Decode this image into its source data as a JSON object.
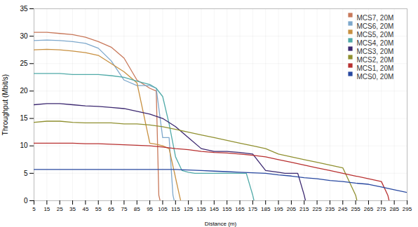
{
  "chart_data": {
    "type": "line",
    "xlabel": "Distance (m)",
    "ylabel": "Throughput (Mbit/s)",
    "xlim": [
      5,
      295
    ],
    "ylim": [
      0,
      35
    ],
    "xticks": [
      5,
      15,
      25,
      35,
      45,
      55,
      65,
      75,
      85,
      95,
      105,
      115,
      125,
      135,
      145,
      155,
      165,
      175,
      185,
      195,
      205,
      215,
      225,
      235,
      245,
      255,
      265,
      275,
      285,
      295
    ],
    "yticks": [
      0,
      5,
      10,
      15,
      20,
      25,
      30,
      35
    ],
    "grid": true,
    "legend": "upper right",
    "series": [
      {
        "name": "MCS7, 20M",
        "color": "#c8785a",
        "x": [
          5,
          15,
          25,
          35,
          45,
          55,
          65,
          75,
          85,
          95,
          100,
          102,
          103
        ],
        "values": [
          30.7,
          30.7,
          30.5,
          30.3,
          29.8,
          29.0,
          28.0,
          26.0,
          22.0,
          20.5,
          20.0,
          1.0,
          0
        ]
      },
      {
        "name": "MCS6, 20M",
        "color": "#7ea8cc",
        "x": [
          5,
          15,
          25,
          35,
          45,
          55,
          65,
          75,
          85,
          95,
          100,
          105,
          110,
          113,
          114
        ],
        "values": [
          29.2,
          29.3,
          29.2,
          29.0,
          28.7,
          27.8,
          25.5,
          22.0,
          21.0,
          21.0,
          20.5,
          11.5,
          11.5,
          1.0,
          0
        ]
      },
      {
        "name": "MCS5, 20M",
        "color": "#c89040",
        "x": [
          5,
          15,
          25,
          35,
          45,
          55,
          65,
          75,
          85,
          95,
          100,
          105,
          110,
          118,
          119
        ],
        "values": [
          27.5,
          27.6,
          27.5,
          27.3,
          27.0,
          26.5,
          25.0,
          23.5,
          21.5,
          10.5,
          10.3,
          10.0,
          9.5,
          1.0,
          0
        ]
      },
      {
        "name": "MCS4, 20M",
        "color": "#50aaa8",
        "x": [
          5,
          15,
          25,
          35,
          45,
          55,
          65,
          75,
          85,
          95,
          100,
          105,
          110,
          115,
          120,
          125,
          130,
          140,
          145,
          155,
          165,
          170,
          175,
          176
        ],
        "values": [
          23.2,
          23.2,
          23.2,
          23.0,
          23.0,
          23.0,
          22.8,
          22.5,
          21.8,
          21.2,
          20.5,
          19.0,
          14.0,
          8.0,
          5.5,
          5.2,
          5.0,
          5.0,
          5.0,
          5.0,
          5.0,
          5.0,
          1.0,
          0
        ]
      },
      {
        "name": "MCS3, 20M",
        "color": "#3c2870",
        "x": [
          5,
          15,
          25,
          35,
          45,
          55,
          65,
          75,
          85,
          95,
          105,
          115,
          125,
          135,
          145,
          155,
          165,
          175,
          185,
          195,
          200,
          210,
          215,
          216
        ],
        "values": [
          17.5,
          17.7,
          17.7,
          17.5,
          17.3,
          17.2,
          17.0,
          16.8,
          16.3,
          15.8,
          15.0,
          13.5,
          11.5,
          9.5,
          9.0,
          9.0,
          8.8,
          8.5,
          5.5,
          5.2,
          5.0,
          5.0,
          1.0,
          0
        ]
      },
      {
        "name": "MCS2, 20M",
        "color": "#909030",
        "x": [
          5,
          15,
          25,
          35,
          45,
          55,
          65,
          75,
          85,
          95,
          105,
          115,
          125,
          135,
          145,
          155,
          165,
          175,
          185,
          195,
          205,
          215,
          225,
          235,
          245,
          255,
          256
        ],
        "values": [
          14.3,
          14.5,
          14.5,
          14.3,
          14.2,
          14.2,
          14.2,
          14.0,
          14.0,
          13.8,
          13.5,
          13.0,
          12.5,
          12.0,
          11.5,
          11.0,
          10.5,
          10.0,
          9.5,
          8.5,
          8.0,
          7.5,
          7.0,
          6.5,
          6.0,
          1.0,
          0
        ]
      },
      {
        "name": "MCS1, 20M",
        "color": "#b83030",
        "x": [
          5,
          15,
          25,
          35,
          45,
          55,
          65,
          75,
          85,
          95,
          105,
          115,
          125,
          135,
          145,
          155,
          165,
          175,
          185,
          195,
          205,
          215,
          225,
          235,
          245,
          255,
          265,
          275,
          280,
          281
        ],
        "values": [
          10.5,
          10.5,
          10.5,
          10.5,
          10.4,
          10.4,
          10.3,
          10.2,
          10.1,
          10.0,
          9.8,
          9.5,
          9.3,
          9.0,
          8.8,
          8.7,
          8.5,
          8.3,
          8.0,
          7.5,
          7.0,
          6.5,
          6.0,
          5.5,
          5.0,
          4.5,
          4.0,
          3.5,
          1.0,
          0
        ]
      },
      {
        "name": "MCS0, 20M",
        "color": "#2848a0",
        "x": [
          5,
          15,
          25,
          35,
          45,
          55,
          65,
          75,
          85,
          95,
          105,
          115,
          125,
          135,
          145,
          155,
          165,
          175,
          185,
          195,
          205,
          215,
          225,
          235,
          245,
          255,
          265,
          275,
          285,
          295
        ],
        "values": [
          5.7,
          5.7,
          5.7,
          5.7,
          5.7,
          5.7,
          5.7,
          5.7,
          5.7,
          5.7,
          5.7,
          5.7,
          5.6,
          5.5,
          5.4,
          5.3,
          5.2,
          5.1,
          5.0,
          4.7,
          4.5,
          4.2,
          4.0,
          3.7,
          3.5,
          3.2,
          3.0,
          2.5,
          2.0,
          1.5
        ]
      }
    ]
  }
}
